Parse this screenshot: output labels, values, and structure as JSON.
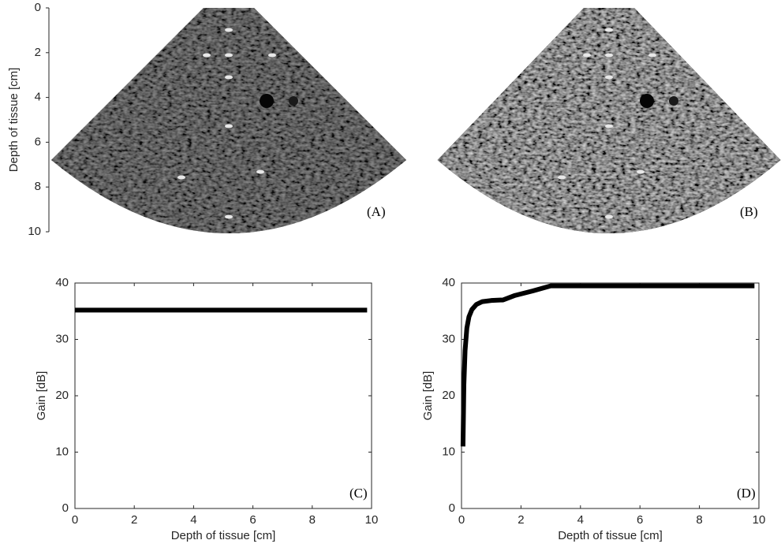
{
  "chart_data": [
    {
      "type": "image",
      "ylabel": "Depth of tissue [cm]",
      "ylim": [
        0,
        10
      ],
      "yticks": [
        0,
        2,
        4,
        6,
        8,
        10
      ],
      "y_reversed": true,
      "label": "(A)"
    },
    {
      "type": "image",
      "label": "(B)"
    },
    {
      "type": "line",
      "xlabel": "Depth of tissue [cm]",
      "ylabel": "Gain [dB]",
      "x": [
        0,
        9.85
      ],
      "values": [
        35.2,
        35.2
      ],
      "color": "#000000",
      "xlim": [
        0,
        10
      ],
      "ylim": [
        0,
        40
      ],
      "xticks": [
        0,
        2,
        4,
        6,
        8,
        10
      ],
      "yticks": [
        0,
        10,
        20,
        30,
        40
      ],
      "label": "(C)"
    },
    {
      "type": "line",
      "xlabel": "Depth of tissue [cm]",
      "ylabel": "Gain [dB]",
      "x": [
        0.05,
        0.08,
        0.12,
        0.18,
        0.25,
        0.35,
        0.5,
        0.7,
        1.0,
        1.4,
        1.8,
        2.4,
        3.0,
        4.0,
        6.0,
        8.0,
        9.85
      ],
      "values": [
        11,
        22,
        28,
        32,
        34,
        35.3,
        36.2,
        36.7,
        36.9,
        37.0,
        37.8,
        38.6,
        39.5,
        39.5,
        39.5,
        39.5,
        39.5
      ],
      "color": "#000000",
      "xlim": [
        0,
        10
      ],
      "ylim": [
        0,
        40
      ],
      "xticks": [
        0,
        2,
        4,
        6,
        8,
        10
      ],
      "yticks": [
        0,
        10,
        20,
        30,
        40
      ],
      "label": "(D)"
    }
  ]
}
